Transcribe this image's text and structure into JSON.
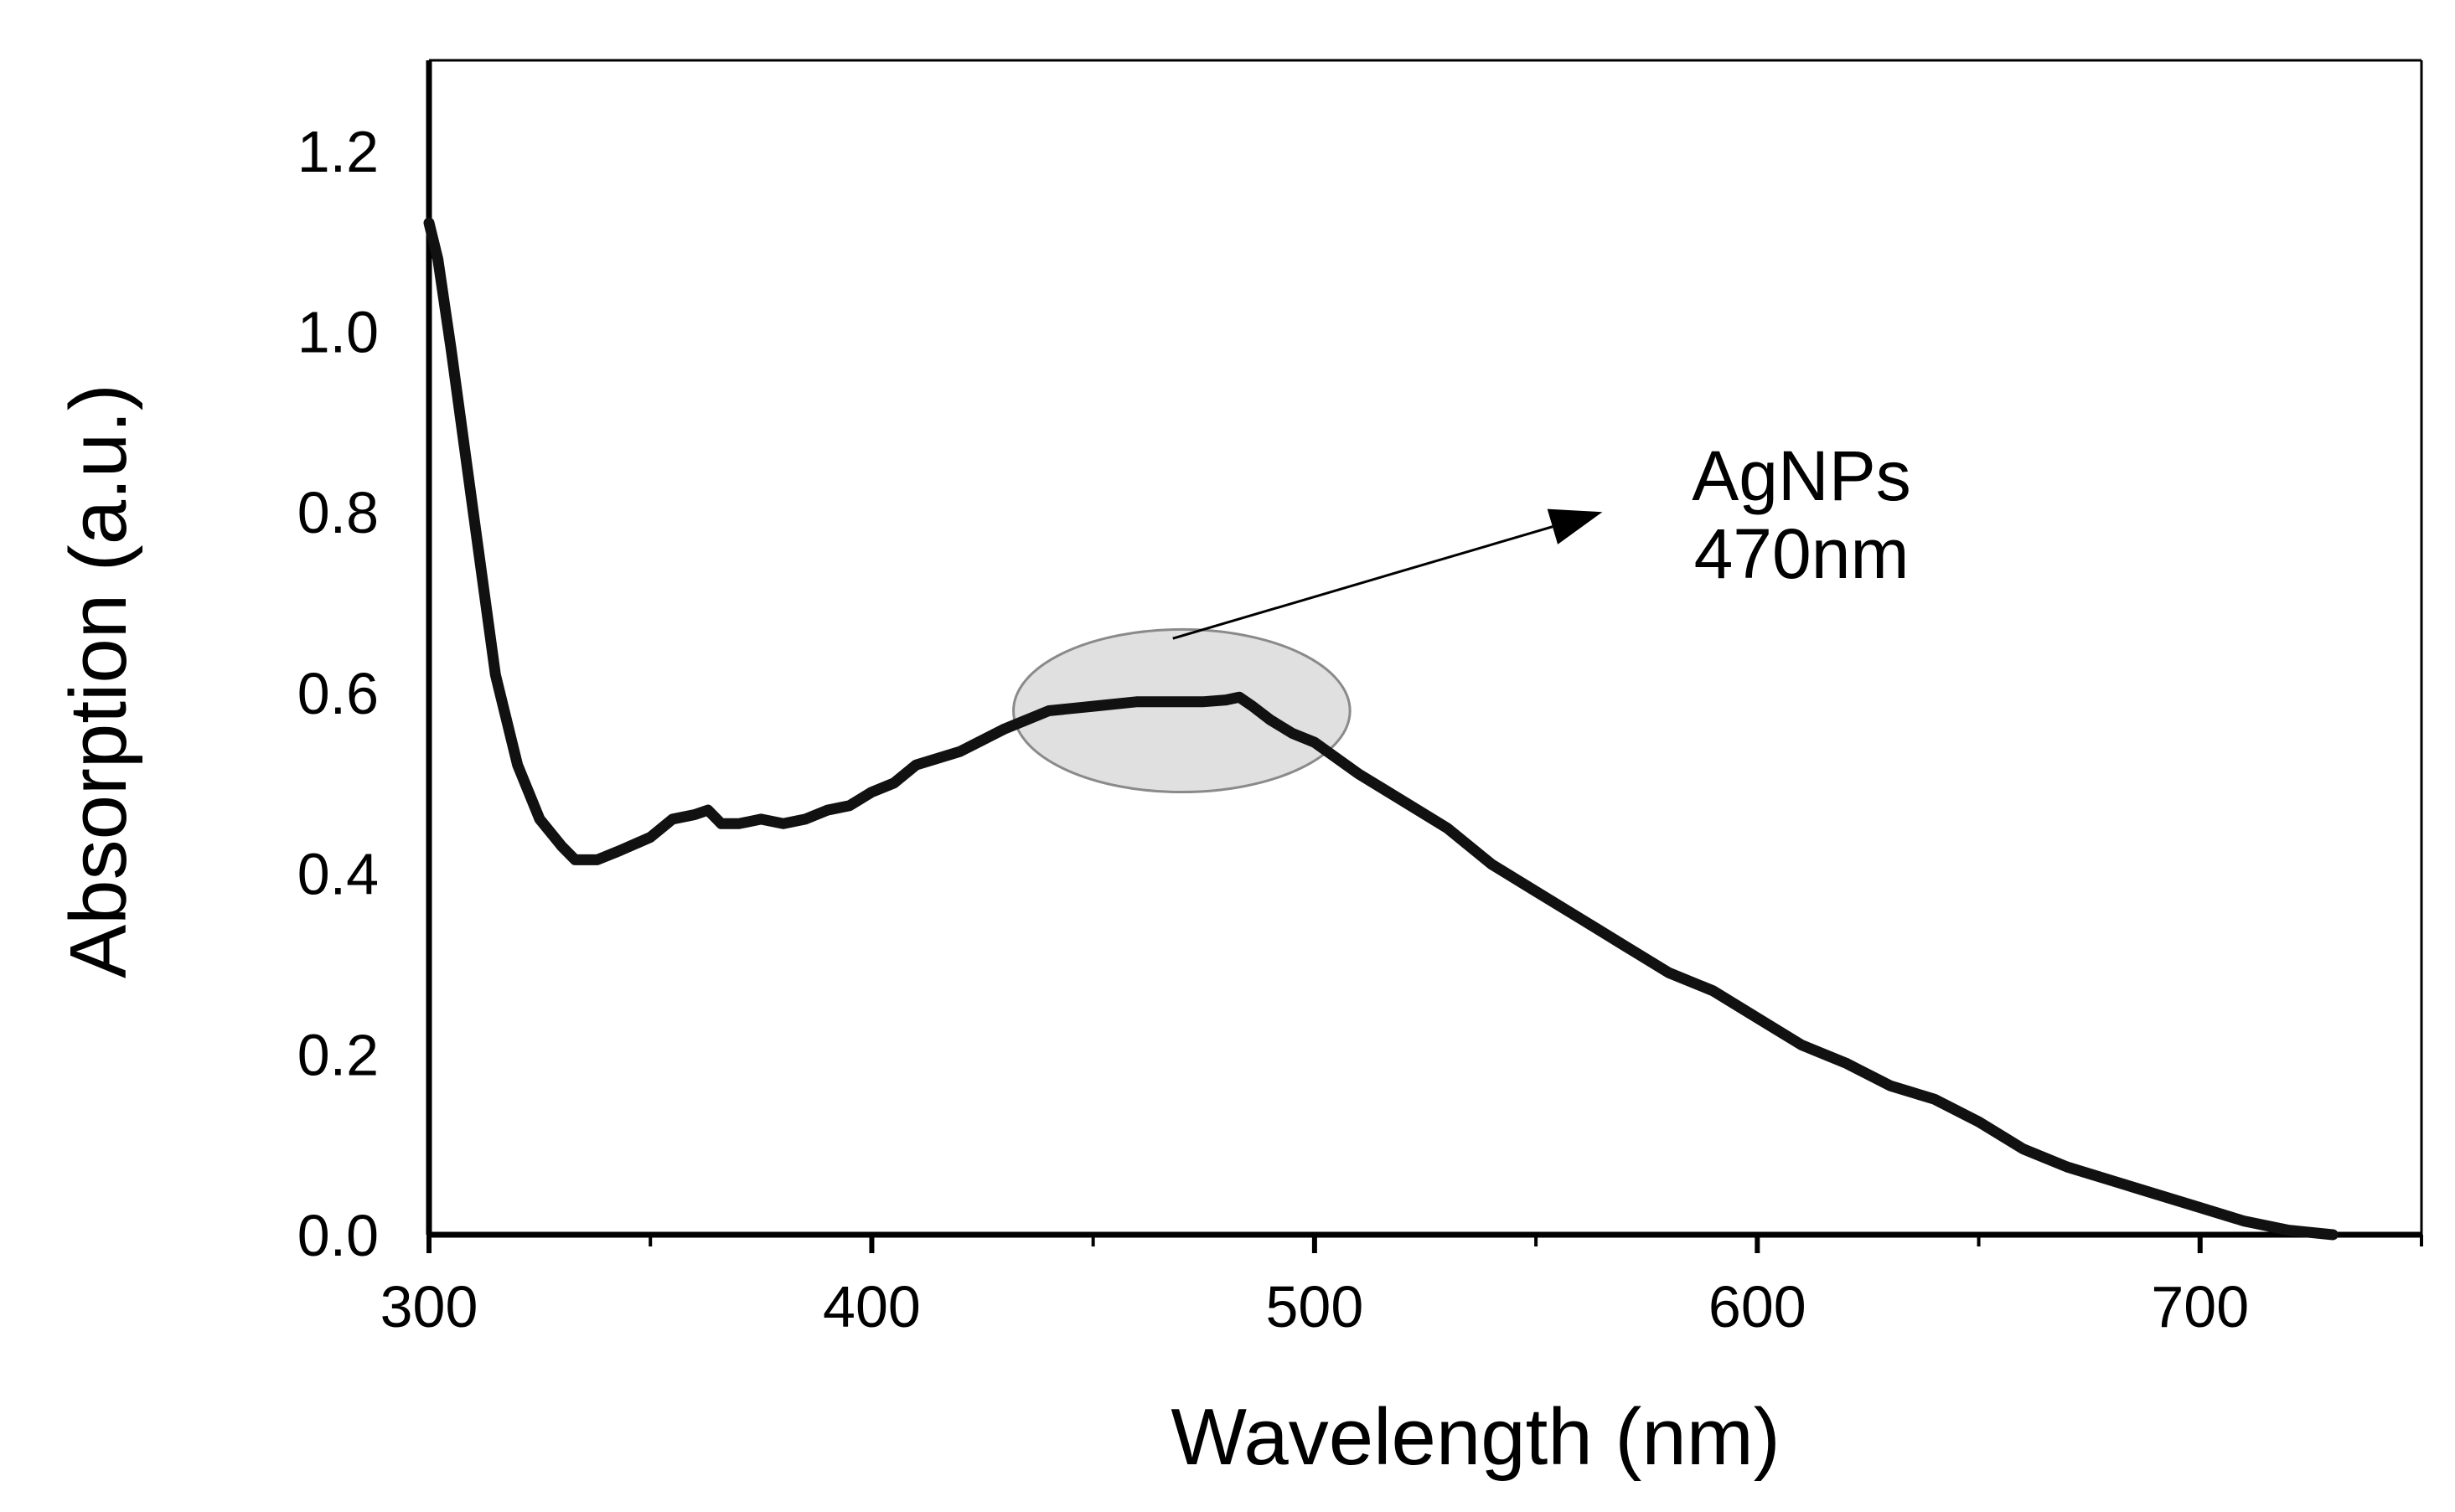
{
  "chart_data": {
    "type": "line",
    "title": "",
    "xlabel": "Wavelength (nm)",
    "ylabel": "Absorption (a.u.)",
    "xlim": [
      300,
      750
    ],
    "ylim": [
      0,
      1.3
    ],
    "x_ticks": [
      "300",
      "400",
      "500",
      "600",
      "700"
    ],
    "x_tick_values": [
      300,
      400,
      500,
      600,
      700
    ],
    "x_minor_ticks": [
      350,
      450,
      550,
      650,
      750
    ],
    "y_ticks": [
      "0.0",
      "0.2",
      "0.4",
      "0.6",
      "0.8",
      "1.0",
      "1.2"
    ],
    "y_tick_values": [
      0,
      0.2,
      0.4,
      0.6,
      0.8,
      1.0,
      1.2
    ],
    "grid": false,
    "series": [
      {
        "name": "AgNPs",
        "color": "#111111",
        "x": [
          300,
          302,
          305,
          310,
          315,
          320,
          325,
          330,
          333,
          338,
          343,
          350,
          355,
          360,
          363,
          366,
          370,
          375,
          380,
          385,
          390,
          395,
          400,
          405,
          410,
          420,
          430,
          440,
          450,
          460,
          465,
          470,
          475,
          480,
          483,
          486,
          490,
          495,
          500,
          510,
          520,
          530,
          540,
          550,
          560,
          570,
          580,
          590,
          600,
          610,
          620,
          630,
          640,
          650,
          660,
          670,
          680,
          690,
          700,
          710,
          720,
          730
        ],
        "y": [
          1.12,
          1.08,
          0.98,
          0.8,
          0.62,
          0.52,
          0.46,
          0.43,
          0.415,
          0.415,
          0.425,
          0.44,
          0.46,
          0.465,
          0.47,
          0.455,
          0.455,
          0.46,
          0.455,
          0.46,
          0.47,
          0.475,
          0.49,
          0.5,
          0.52,
          0.535,
          0.56,
          0.58,
          0.585,
          0.59,
          0.59,
          0.59,
          0.59,
          0.592,
          0.595,
          0.585,
          0.57,
          0.555,
          0.545,
          0.51,
          0.48,
          0.45,
          0.41,
          0.38,
          0.35,
          0.32,
          0.29,
          0.27,
          0.24,
          0.21,
          0.19,
          0.165,
          0.15,
          0.125,
          0.095,
          0.075,
          0.06,
          0.045,
          0.03,
          0.015,
          0.005,
          0.0
        ]
      }
    ],
    "highlight": {
      "center_x": 470,
      "center_y": 0.58,
      "rx_data": 38,
      "ry_data": 0.09,
      "color": "#e0e0e0"
    },
    "annotations": [
      {
        "line1": "AgNPs",
        "line2": "470nm",
        "arrow_from": [
          468,
          0.66
        ],
        "arrow_to": [
          565,
          0.8
        ]
      }
    ]
  }
}
